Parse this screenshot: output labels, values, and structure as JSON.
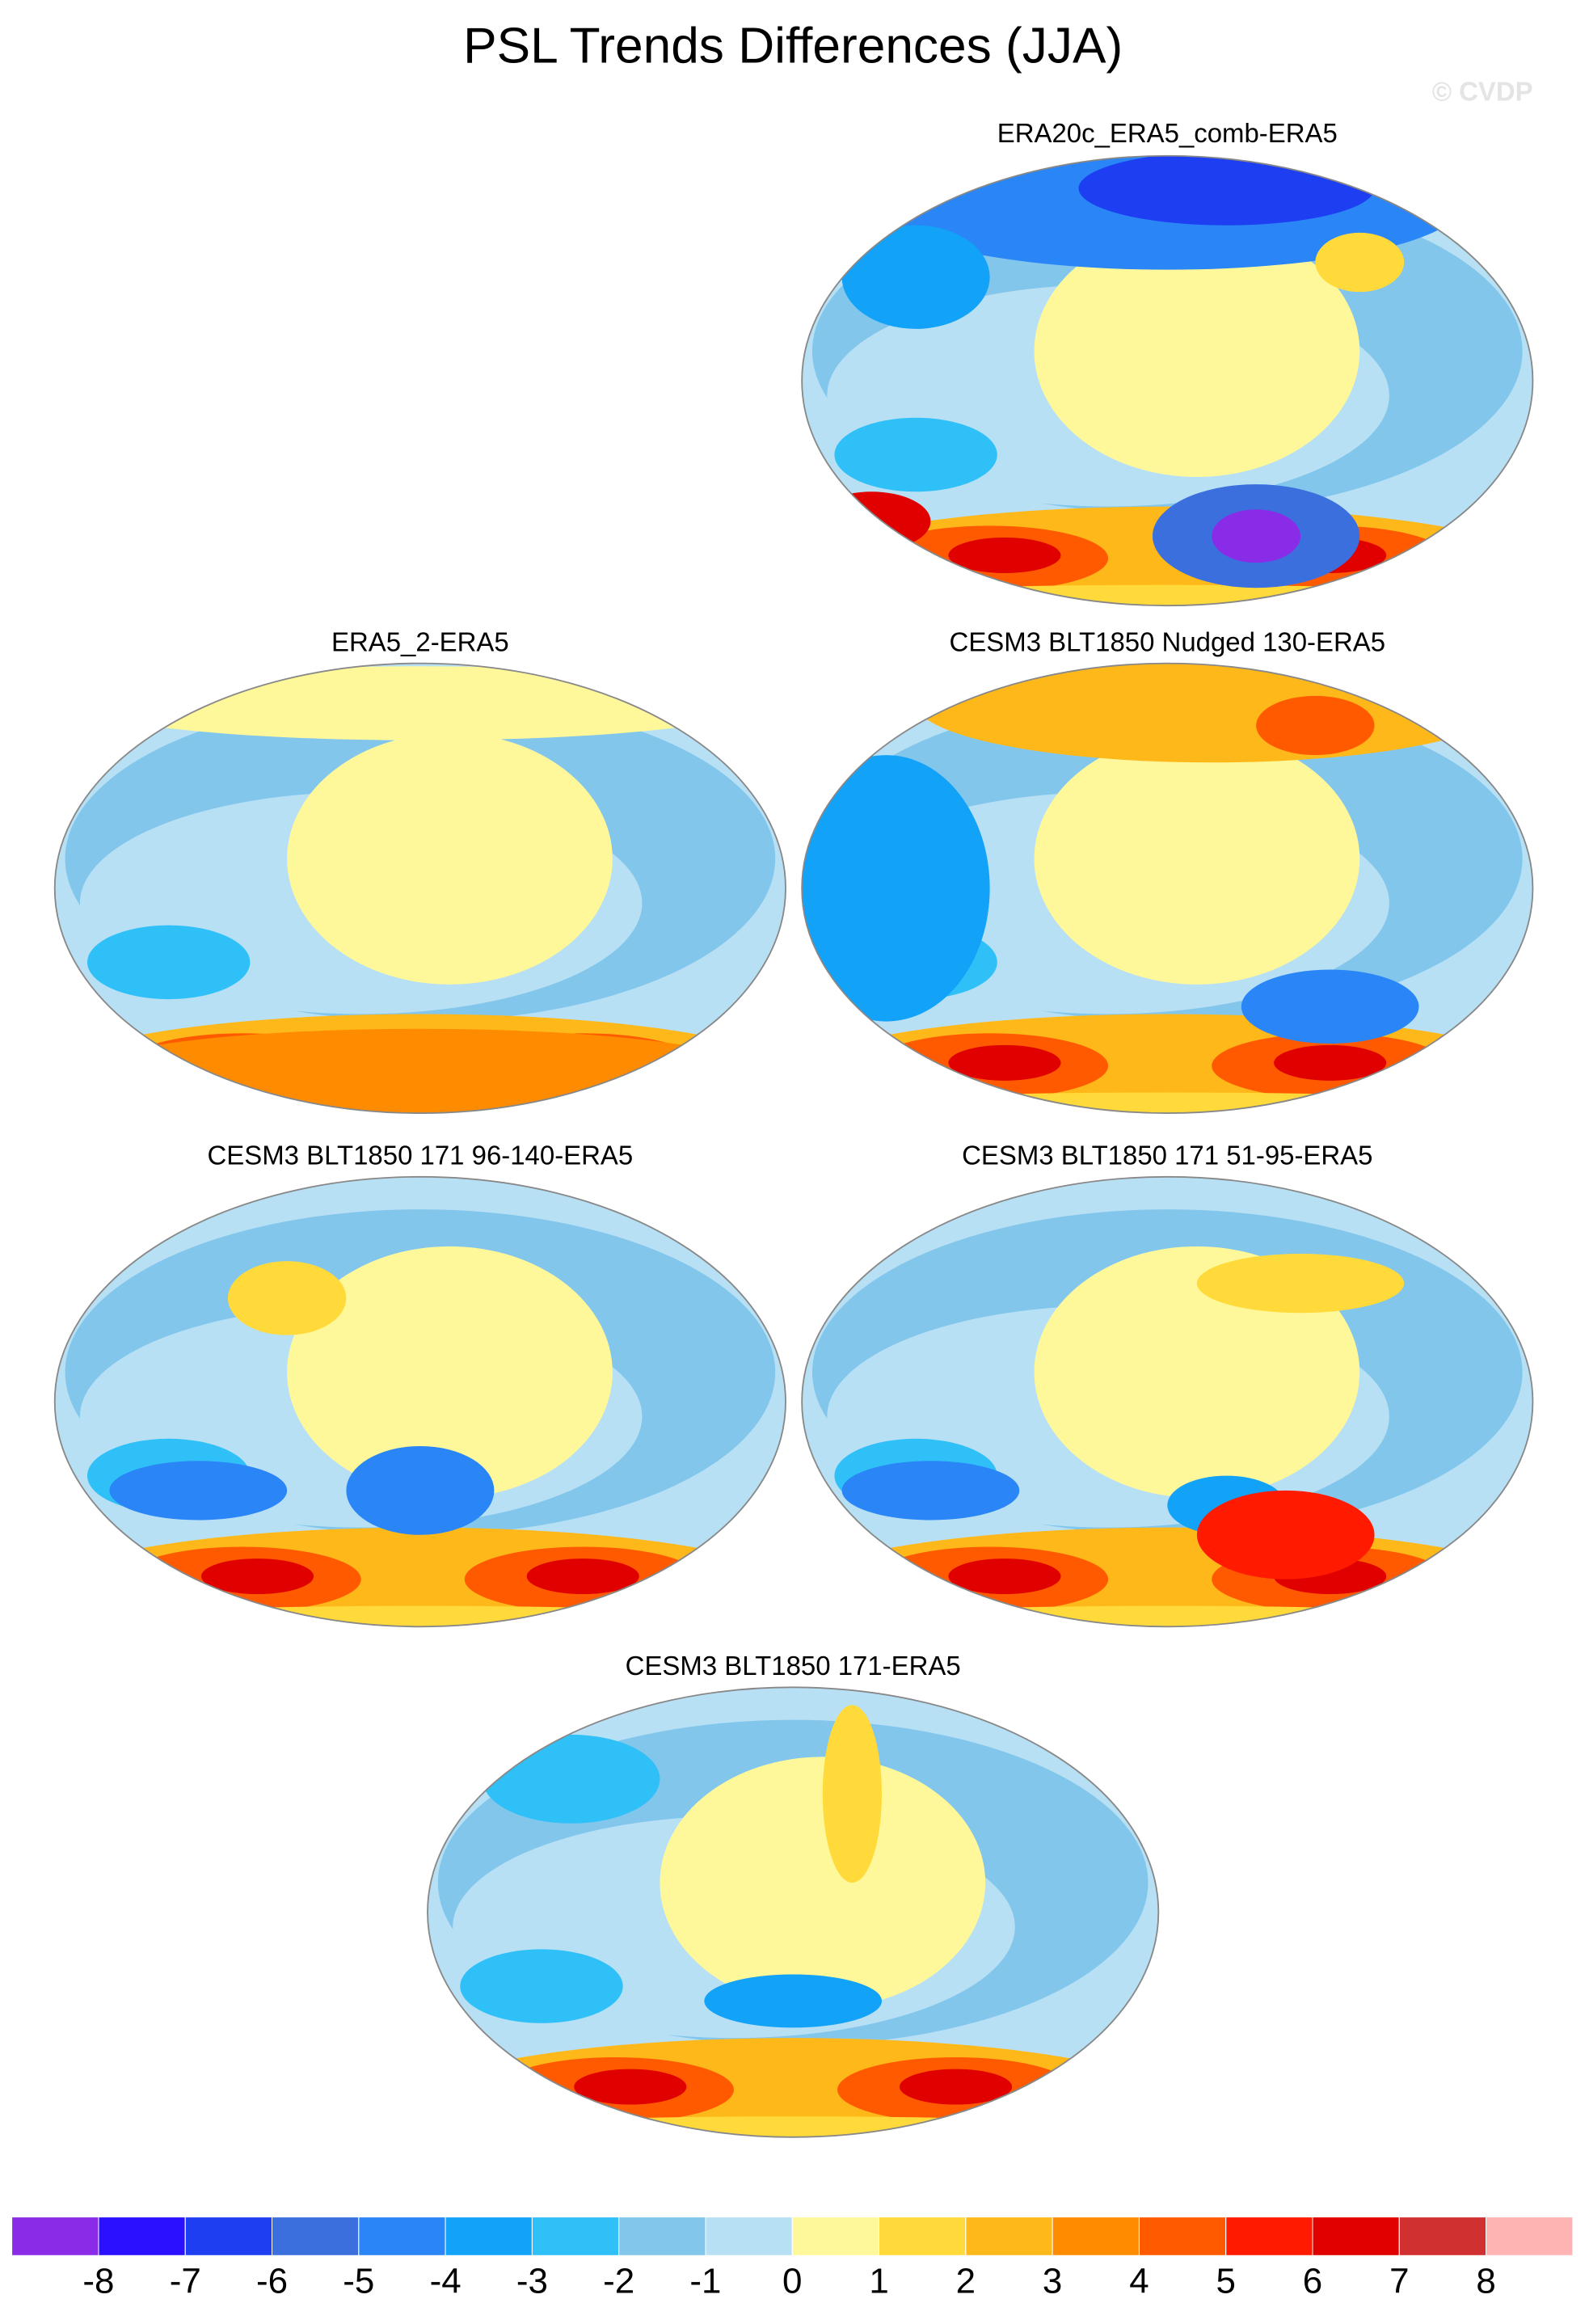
{
  "chart_data": {
    "type": "map-panels",
    "title": "PSL Trends Differences (JJA)",
    "watermark": "© CVDP",
    "panels": [
      {
        "title": "ERA20c_ERA5_comb-ERA5"
      },
      {
        "title": "ERA5_2-ERA5"
      },
      {
        "title": "CESM3 BLT1850 Nudged 130-ERA5"
      },
      {
        "title": "CESM3 BLT1850 171 96-140-ERA5"
      },
      {
        "title": "CESM3 BLT1850 171 51-95-ERA5"
      },
      {
        "title": "CESM3 BLT1850 171-ERA5"
      }
    ],
    "colorbar": {
      "colors": [
        "#8a2be8",
        "#2a10ff",
        "#1e3ef2",
        "#3b6fde",
        "#2a86f6",
        "#12a2f8",
        "#30c0f8",
        "#82c6ec",
        "#b8e0f4",
        "#fff89a",
        "#ffda3a",
        "#ffb81a",
        "#ff8c00",
        "#ff5a00",
        "#ff1a00",
        "#e00000",
        "#d03030",
        "#ffb4b4"
      ],
      "ticks": [
        -8,
        -7,
        -6,
        -5,
        -4,
        -3,
        -2,
        -1,
        0,
        1,
        2,
        3,
        4,
        5,
        6,
        7,
        8
      ]
    }
  }
}
